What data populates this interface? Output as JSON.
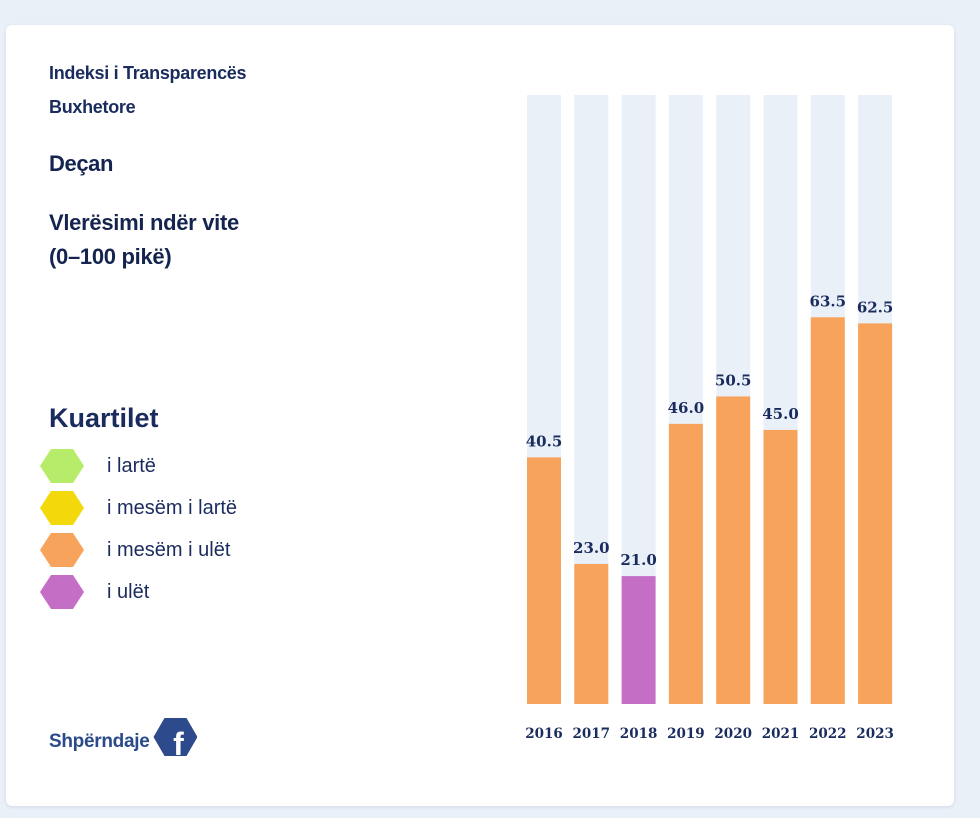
{
  "header": {
    "title_line1": "Indeksi i Transparencës",
    "title_line2": "Buxhetore",
    "municipality": "Deçan",
    "subtitle_line1": "Vlerësimi ndër vite",
    "subtitle_line2": "(0–100 pikë)"
  },
  "legend": {
    "title": "Kuartilet",
    "items": [
      {
        "label": "i lartë",
        "color": "#b7ec6a"
      },
      {
        "label": "i mesëm i lartë",
        "color": "#f3d80c"
      },
      {
        "label": "i mesëm i ulët",
        "color": "#f7a35c"
      },
      {
        "label": "i ulët",
        "color": "#c46ec6"
      }
    ]
  },
  "share": {
    "label": "Shpërndaje",
    "icon": "facebook-icon",
    "color": "#2c4a8c"
  },
  "chart_data": {
    "type": "bar",
    "categories": [
      "2016",
      "2017",
      "2018",
      "2019",
      "2020",
      "2021",
      "2022",
      "2023"
    ],
    "values": [
      40.5,
      23.0,
      21.0,
      46.0,
      50.5,
      45.0,
      63.5,
      62.5
    ],
    "value_labels": [
      "40.5",
      "23.0",
      "21.0",
      "46.0",
      "50.5",
      "45.0",
      "63.5",
      "62.5"
    ],
    "quartile_colors": [
      "#f7a35c",
      "#f7a35c",
      "#c46ec6",
      "#f7a35c",
      "#f7a35c",
      "#f7a35c",
      "#f7a35c",
      "#f7a35c"
    ],
    "ylim": [
      0,
      100
    ],
    "background_bar_color": "#e9f0f8",
    "grid": true
  }
}
